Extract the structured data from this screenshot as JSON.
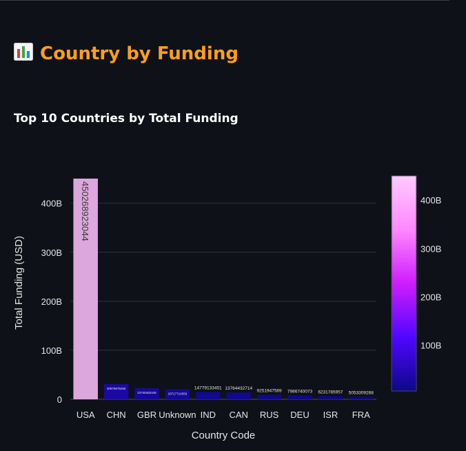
{
  "page": {
    "title": "Country by Funding",
    "title_icon": "bar-chart-icon",
    "accent_color": "#ff9f1a"
  },
  "chart_data": {
    "type": "bar",
    "title": "Top 10 Countries by Total Funding",
    "xlabel": "Country Code",
    "ylabel": "Total Funding (USD)",
    "categories": [
      "USA",
      "CHN",
      "GBR",
      "Unknown",
      "IND",
      "CAN",
      "RUS",
      "DEU",
      "ISR",
      "FRA"
    ],
    "values": [
      450268923044,
      30875675255,
      22746482445,
      20717714559,
      14779133451,
      13764432714,
      9251947569,
      7986740073,
      6231785957,
      5053309268
    ],
    "data_labels": [
      "450268923044",
      "30875675255",
      "22746482445",
      "20717714559",
      "14779133451",
      "13764432714",
      "9251947569",
      "7986740073",
      "6231785957",
      "5053309268"
    ],
    "ylim": [
      0,
      450268923044
    ],
    "yticks": [
      0,
      100000000000,
      200000000000,
      300000000000,
      400000000000
    ],
    "ytick_labels": [
      "0",
      "100B",
      "200B",
      "300B",
      "400B"
    ],
    "grid": true,
    "colorscale": {
      "colors": [
        "#0d0887",
        "#4f07ff",
        "#ce1dfc",
        "#ff88ff",
        "#ffcafe"
      ],
      "ticks": [
        100000000000,
        200000000000,
        300000000000,
        400000000000
      ],
      "tick_labels": [
        "100B",
        "200B",
        "300B",
        "400B"
      ],
      "range": [
        5053309268,
        450268923044
      ],
      "position": "right"
    },
    "background_color": "#0e1117",
    "grid_color": "#2e323c"
  }
}
